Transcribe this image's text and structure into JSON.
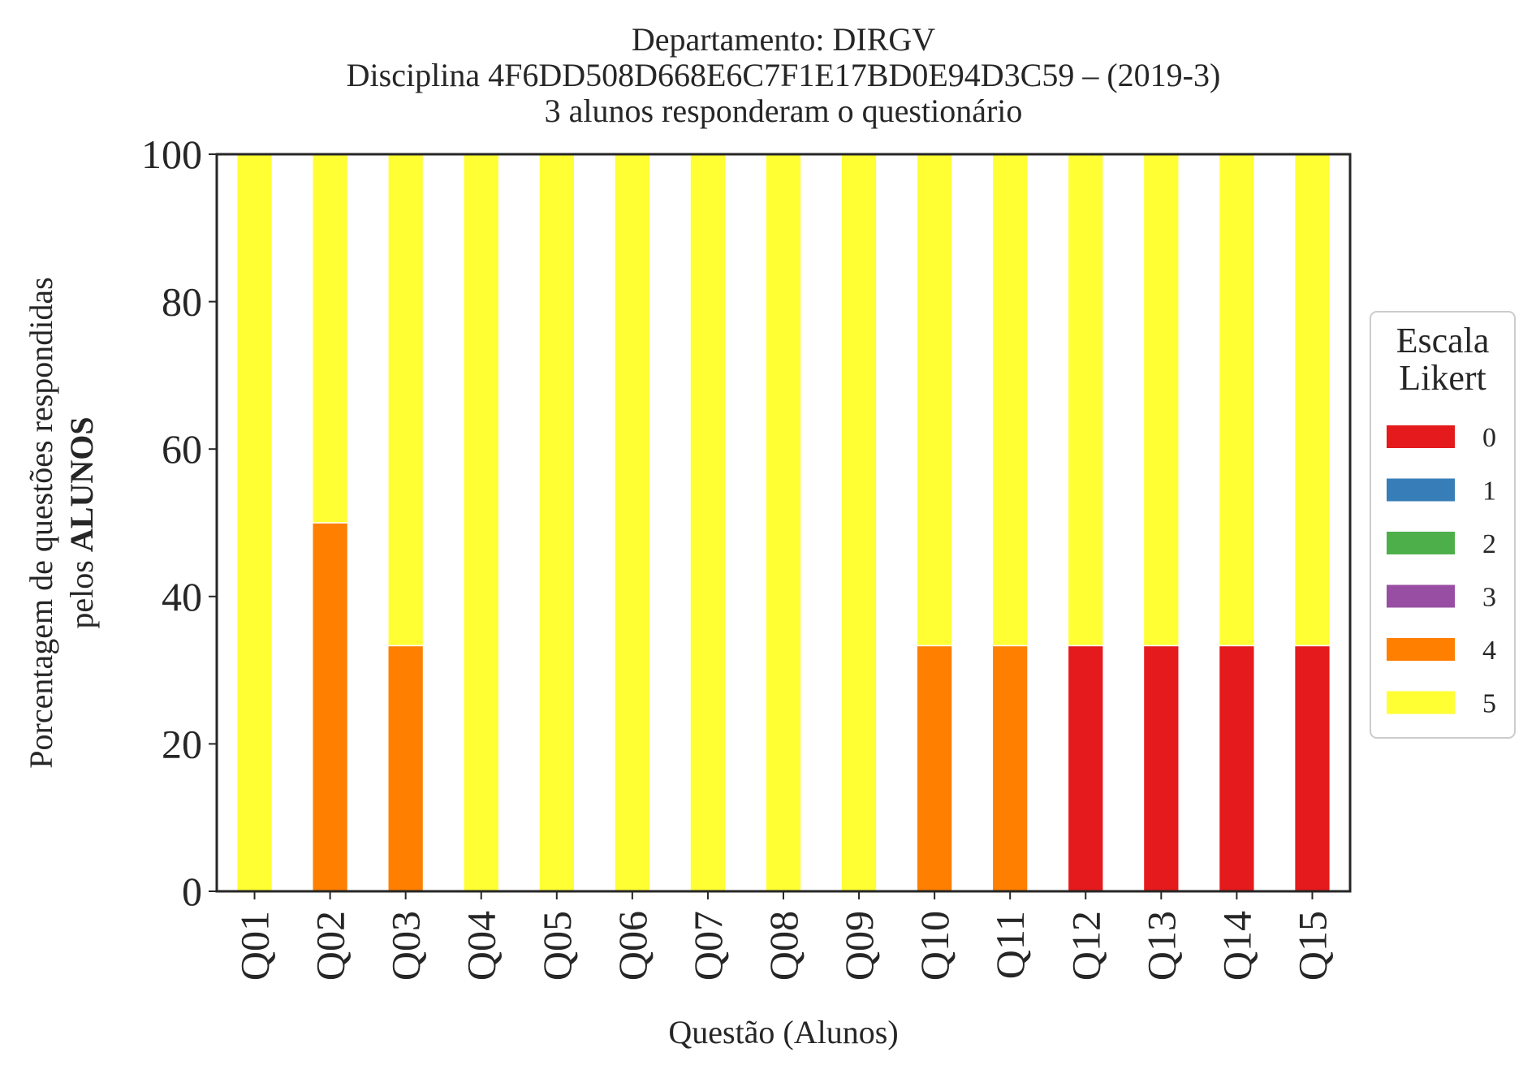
{
  "chart_data": {
    "type": "bar",
    "stacked": true,
    "title": [
      "Departamento: DIRGV",
      "Disciplina 4F6DD508D668E6C7F1E17BD0E94D3C59 – (2019-3)",
      "3 alunos responderam o questionário"
    ],
    "xlabel": "Questão (Alunos)",
    "ylabel": "Porcentagem de questões respondidas",
    "ylabel_line2_prefix": "pelos ",
    "ylabel_line2_bold": "ALUNOS",
    "ylim": [
      0,
      100
    ],
    "yticks": [
      "0",
      "20",
      "40",
      "60",
      "80",
      "100"
    ],
    "categories": [
      "Q01",
      "Q02",
      "Q03",
      "Q04",
      "Q05",
      "Q06",
      "Q07",
      "Q08",
      "Q09",
      "Q10",
      "Q11",
      "Q12",
      "Q13",
      "Q14",
      "Q15"
    ],
    "series": [
      {
        "name": "0",
        "color": "#e41a1c",
        "values": [
          0,
          0,
          0,
          0,
          0,
          0,
          0,
          0,
          0,
          0,
          0,
          33.33,
          33.33,
          33.33,
          33.33
        ]
      },
      {
        "name": "1",
        "color": "#377eb8",
        "values": [
          0,
          0,
          0,
          0,
          0,
          0,
          0,
          0,
          0,
          0,
          0,
          0,
          0,
          0,
          0
        ]
      },
      {
        "name": "2",
        "color": "#4daf4a",
        "values": [
          0,
          0,
          0,
          0,
          0,
          0,
          0,
          0,
          0,
          0,
          0,
          0,
          0,
          0,
          0
        ]
      },
      {
        "name": "3",
        "color": "#984ea3",
        "values": [
          0,
          0,
          0,
          0,
          0,
          0,
          0,
          0,
          0,
          0,
          0,
          0,
          0,
          0,
          0
        ]
      },
      {
        "name": "4",
        "color": "#ff7f00",
        "values": [
          0,
          50,
          33.33,
          0,
          0,
          0,
          0,
          0,
          0,
          33.33,
          33.33,
          0,
          0,
          0,
          0
        ]
      },
      {
        "name": "5",
        "color": "#ffff33",
        "values": [
          100,
          50,
          66.67,
          100,
          100,
          100,
          100,
          100,
          100,
          66.67,
          66.67,
          66.67,
          66.67,
          66.67,
          66.67
        ]
      }
    ],
    "legend": {
      "title": [
        "Escala",
        "Likert"
      ],
      "placement": "right-center"
    },
    "grid": false
  }
}
